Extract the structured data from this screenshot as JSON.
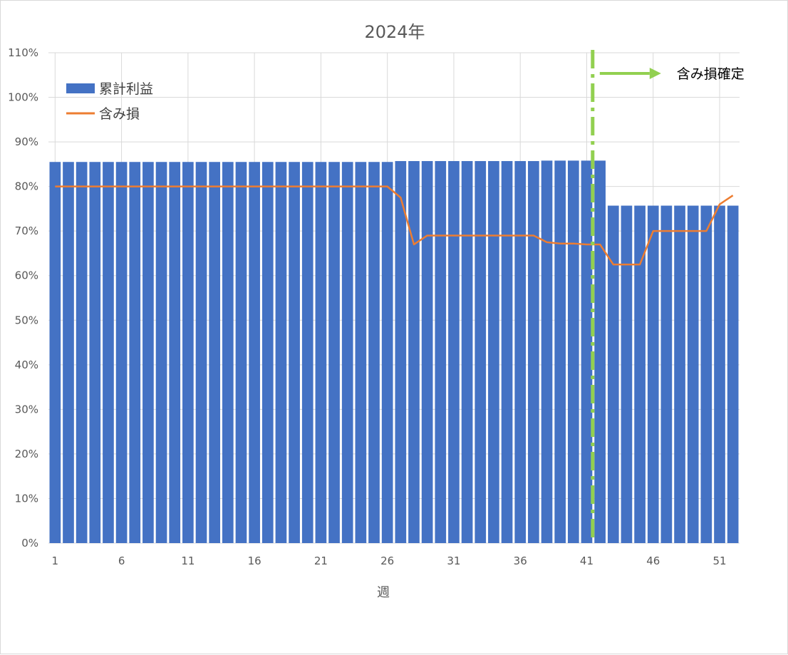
{
  "chart_data": {
    "type": "bar",
    "title": "2024年",
    "xlabel": "週",
    "ylabel": "",
    "ylim": [
      0,
      110
    ],
    "y_ticks": [
      "0%",
      "10%",
      "20%",
      "30%",
      "40%",
      "50%",
      "60%",
      "70%",
      "80%",
      "90%",
      "100%",
      "110%"
    ],
    "x_tick_labels": [
      "1",
      "6",
      "11",
      "16",
      "21",
      "26",
      "31",
      "36",
      "41",
      "46",
      "51"
    ],
    "grid": true,
    "legend_position": "top-left",
    "x": [
      1,
      2,
      3,
      4,
      5,
      6,
      7,
      8,
      9,
      10,
      11,
      12,
      13,
      14,
      15,
      16,
      17,
      18,
      19,
      20,
      21,
      22,
      23,
      24,
      25,
      26,
      27,
      28,
      29,
      30,
      31,
      32,
      33,
      34,
      35,
      36,
      37,
      38,
      39,
      40,
      41,
      42,
      43,
      44,
      45,
      46,
      47,
      48,
      49,
      50,
      51,
      52
    ],
    "series": [
      {
        "name": "累計利益",
        "type": "bar",
        "color": "#4472c4",
        "values": [
          85.5,
          85.5,
          85.5,
          85.5,
          85.5,
          85.5,
          85.5,
          85.5,
          85.5,
          85.5,
          85.5,
          85.5,
          85.5,
          85.5,
          85.5,
          85.5,
          85.5,
          85.5,
          85.5,
          85.5,
          85.5,
          85.5,
          85.5,
          85.5,
          85.5,
          85.5,
          85.7,
          85.7,
          85.7,
          85.7,
          85.7,
          85.7,
          85.7,
          85.7,
          85.7,
          85.7,
          85.7,
          85.8,
          85.8,
          85.8,
          85.8,
          85.8,
          75.7,
          75.7,
          75.7,
          75.7,
          75.7,
          75.7,
          75.7,
          75.7,
          75.7,
          75.7
        ]
      },
      {
        "name": "含み損",
        "type": "line",
        "color": "#ed7d31",
        "values": [
          80,
          80,
          80,
          80,
          80,
          80,
          80,
          80,
          80,
          80,
          80,
          80,
          80,
          80,
          80,
          80,
          80,
          80,
          80,
          80,
          80,
          80,
          80,
          80,
          80,
          80,
          77.5,
          67,
          69,
          69,
          69,
          69,
          69,
          69,
          69,
          69,
          69,
          67.5,
          67.2,
          67.2,
          67,
          67,
          62.5,
          62.5,
          62.5,
          70,
          70,
          70,
          70,
          70,
          76,
          78
        ]
      }
    ],
    "annotations": [
      {
        "text": "含み損確定",
        "at_x": 42,
        "line_color": "#92d050",
        "arrow_color": "#92d050"
      }
    ]
  }
}
